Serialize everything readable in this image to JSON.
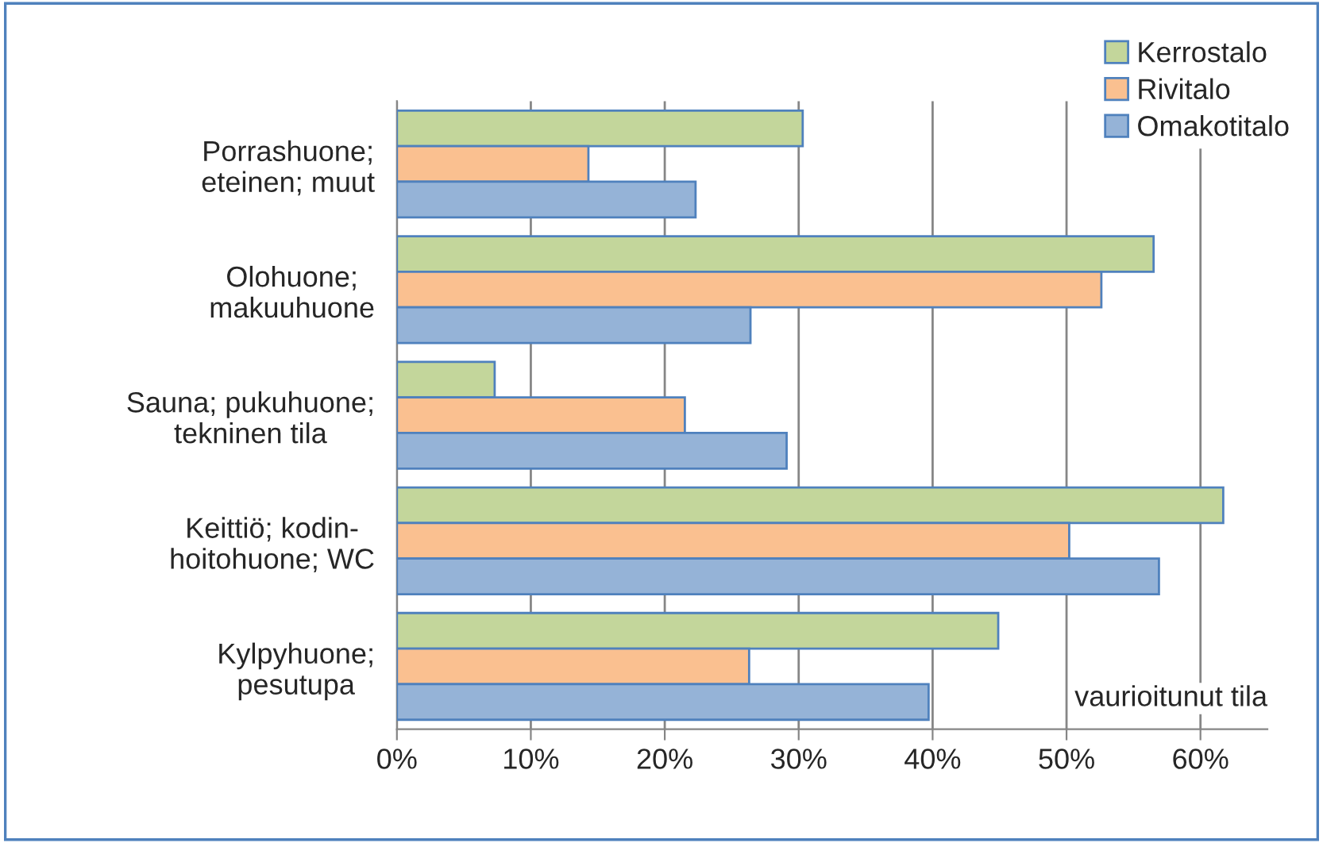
{
  "chart_data": {
    "type": "bar",
    "orientation": "horizontal",
    "xlabel": "vaurioitunut tila",
    "categories": [
      "Porrashuone;\neteinen; muut",
      "Olohuone;\nmakuuhuone",
      "Sauna; pukuhuone;\ntekninen tila",
      "Keittiö; kodin-\nhoitohuone; WC",
      "Kylpyhuone;\npesutupa"
    ],
    "series": [
      {
        "name": "Kerrostalo",
        "color": "#c3d69b",
        "values": [
          30.3,
          56.5,
          7.3,
          61.7,
          44.9
        ]
      },
      {
        "name": "Rivitalo",
        "color": "#fac090",
        "values": [
          14.3,
          52.6,
          21.5,
          50.2,
          26.3
        ]
      },
      {
        "name": "Omakotitalo",
        "color": "#95b3d7",
        "values": [
          22.3,
          26.4,
          29.1,
          56.9,
          39.7
        ]
      }
    ],
    "xlim": [
      0,
      65
    ],
    "xticks": [
      {
        "value": 0,
        "label": "0%"
      },
      {
        "value": 10,
        "label": "10%"
      },
      {
        "value": 20,
        "label": "20%"
      },
      {
        "value": 30,
        "label": "30%"
      },
      {
        "value": 40,
        "label": "40%"
      },
      {
        "value": 50,
        "label": "50%"
      },
      {
        "value": 60,
        "label": "60%"
      }
    ],
    "grid": "x",
    "legend": "top right"
  }
}
